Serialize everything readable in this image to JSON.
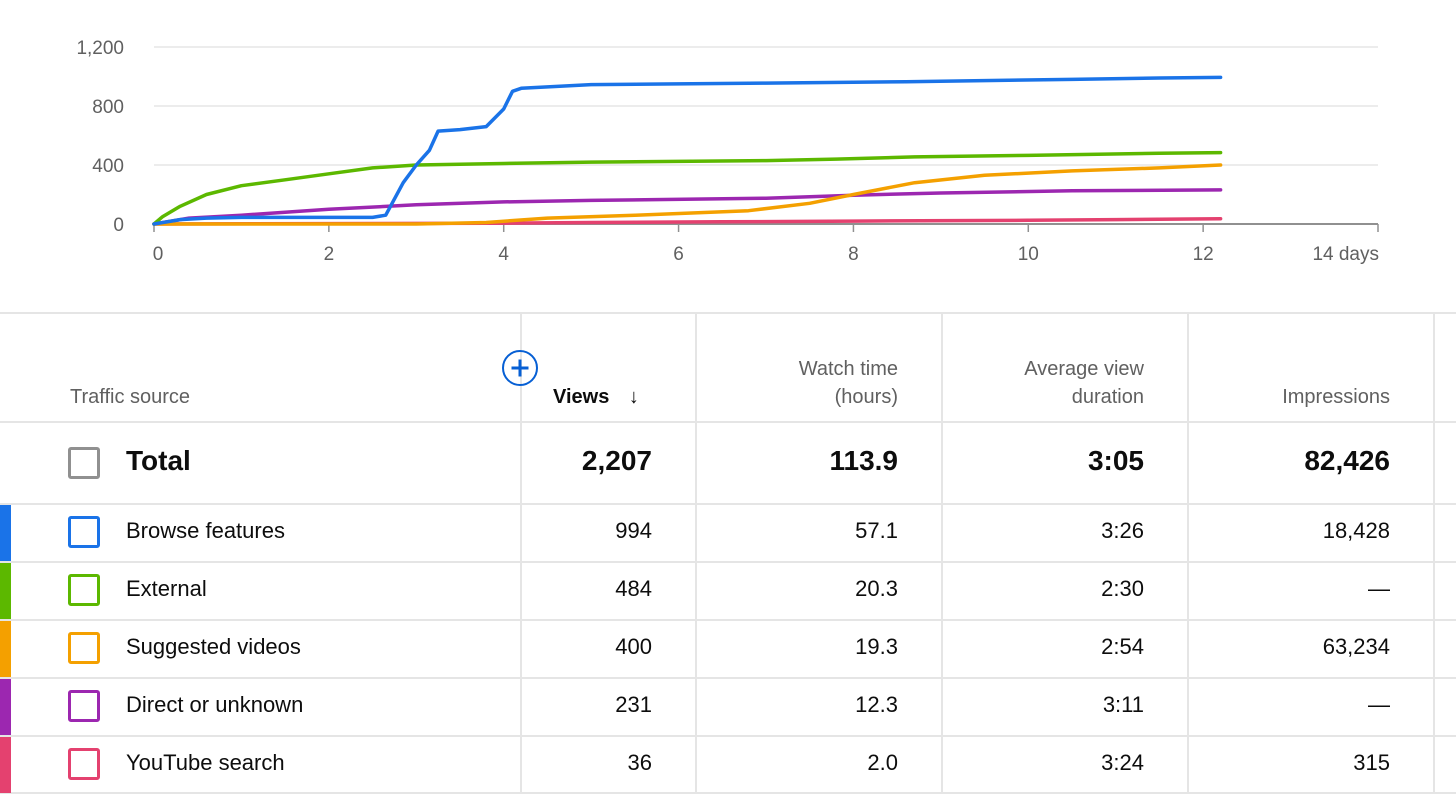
{
  "chart_data": {
    "type": "line",
    "xlabel": "",
    "ylabel": "",
    "x_ticks": [
      "0",
      "2",
      "4",
      "6",
      "8",
      "10",
      "12",
      "14 days"
    ],
    "y_ticks": [
      "0",
      "400",
      "800",
      "1,200"
    ],
    "xlim": [
      0,
      14
    ],
    "ylim": [
      0,
      1200
    ],
    "grid": true,
    "series": [
      {
        "color": "#1a73e8",
        "points": [
          [
            0,
            0
          ],
          [
            0.3,
            30
          ],
          [
            0.6,
            40
          ],
          [
            1,
            45
          ],
          [
            2.5,
            45
          ],
          [
            2.65,
            60
          ],
          [
            2.85,
            280
          ],
          [
            3.0,
            400
          ],
          [
            3.15,
            500
          ],
          [
            3.25,
            630
          ],
          [
            3.5,
            640
          ],
          [
            3.8,
            660
          ],
          [
            4.0,
            780
          ],
          [
            4.1,
            900
          ],
          [
            4.2,
            920
          ],
          [
            5,
            945
          ],
          [
            7,
            955
          ],
          [
            8.6,
            965
          ],
          [
            10.5,
            980
          ],
          [
            11.5,
            990
          ],
          [
            12.2,
            994
          ]
        ]
      },
      {
        "color": "#5cb800",
        "points": [
          [
            0,
            0
          ],
          [
            0.1,
            50
          ],
          [
            0.3,
            120
          ],
          [
            0.6,
            200
          ],
          [
            1.0,
            260
          ],
          [
            1.5,
            300
          ],
          [
            2.0,
            340
          ],
          [
            2.5,
            380
          ],
          [
            3.0,
            400
          ],
          [
            4.0,
            410
          ],
          [
            5.0,
            420
          ],
          [
            7.0,
            430
          ],
          [
            7.8,
            440
          ],
          [
            8.7,
            455
          ],
          [
            10.0,
            465
          ],
          [
            11.5,
            480
          ],
          [
            12.2,
            484
          ]
        ]
      },
      {
        "color": "#f4a000",
        "points": [
          [
            0,
            0
          ],
          [
            3,
            0
          ],
          [
            3.8,
            10
          ],
          [
            4.5,
            40
          ],
          [
            5.5,
            60
          ],
          [
            6.8,
            90
          ],
          [
            7.5,
            140
          ],
          [
            8.0,
            200
          ],
          [
            8.7,
            280
          ],
          [
            9.5,
            330
          ],
          [
            10.5,
            360
          ],
          [
            11.5,
            380
          ],
          [
            12.2,
            400
          ]
        ]
      },
      {
        "color": "#9c27b0",
        "points": [
          [
            0,
            0
          ],
          [
            0.4,
            40
          ],
          [
            1.0,
            60
          ],
          [
            2.0,
            100
          ],
          [
            3.0,
            130
          ],
          [
            4.0,
            150
          ],
          [
            5.0,
            160
          ],
          [
            7.0,
            175
          ],
          [
            8.0,
            195
          ],
          [
            9.0,
            210
          ],
          [
            10.5,
            225
          ],
          [
            12.2,
            231
          ]
        ]
      },
      {
        "color": "#e4416f",
        "points": [
          [
            0,
            0
          ],
          [
            3.8,
            5
          ],
          [
            5,
            10
          ],
          [
            6.5,
            15
          ],
          [
            8,
            20
          ],
          [
            10,
            25
          ],
          [
            11,
            30
          ],
          [
            12.2,
            36
          ]
        ]
      }
    ]
  },
  "table": {
    "add_metric_label": "+",
    "headers": {
      "traffic_source": "Traffic source",
      "views": "Views",
      "views_sort": "↓",
      "watch_time_line1": "Watch time",
      "watch_time_line2": "(hours)",
      "avg_duration_line1": "Average view",
      "avg_duration_line2": "duration",
      "impressions": "Impressions"
    },
    "total": {
      "label": "Total",
      "views": "2,207",
      "watch_time": "113.9",
      "avg_duration": "3:05",
      "impressions": "82,426"
    },
    "rows": [
      {
        "label": "Browse features",
        "views": "994",
        "watch_time": "57.1",
        "avg_duration": "3:26",
        "impressions": "18,428",
        "color": "#1a73e8"
      },
      {
        "label": "External",
        "views": "484",
        "watch_time": "20.3",
        "avg_duration": "2:30",
        "impressions": "—",
        "color": "#5cb800"
      },
      {
        "label": "Suggested videos",
        "views": "400",
        "watch_time": "19.3",
        "avg_duration": "2:54",
        "impressions": "63,234",
        "color": "#f4a000"
      },
      {
        "label": "Direct or unknown",
        "views": "231",
        "watch_time": "12.3",
        "avg_duration": "3:11",
        "impressions": "—",
        "color": "#9c27b0"
      },
      {
        "label": "YouTube search",
        "views": "36",
        "watch_time": "2.0",
        "avg_duration": "3:24",
        "impressions": "315",
        "color": "#e4416f"
      }
    ]
  }
}
